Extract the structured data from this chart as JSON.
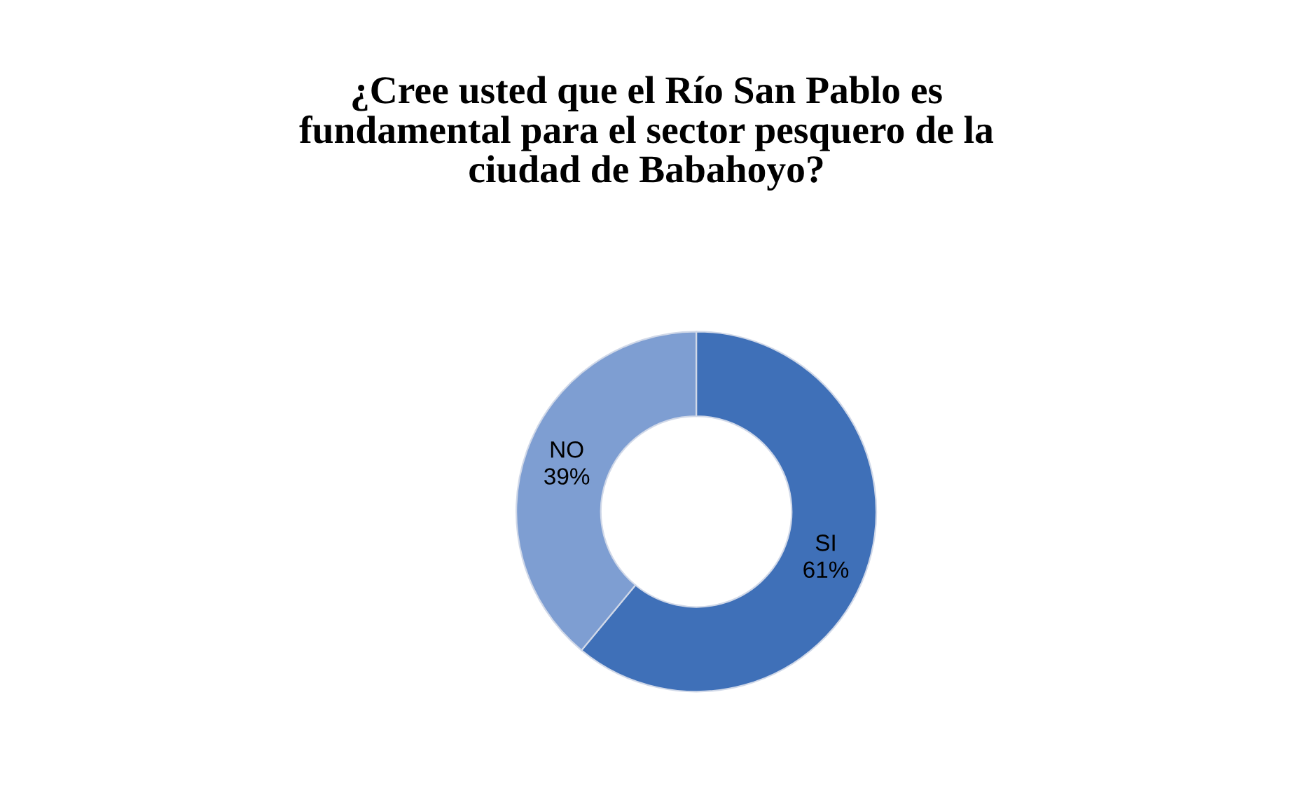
{
  "chart_data": {
    "type": "donut",
    "title": "¿Cree usted que el Río San Pablo es\nfundamental para el sector pesquero de la\nciudad de Babahoyo?",
    "categories": [
      "SI",
      "NO"
    ],
    "values": [
      61,
      39
    ],
    "value_labels": [
      "61%",
      "39%"
    ],
    "colors": [
      "#3f70b8",
      "#7e9ed2"
    ],
    "legend": false
  }
}
